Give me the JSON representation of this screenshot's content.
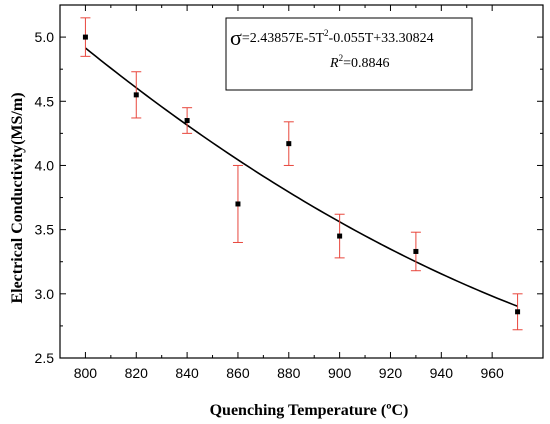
{
  "chart_data": {
    "type": "scatter",
    "xlabel": "Quenching Temperature (ºC)",
    "ylabel": "Electrical Conductivity(MS/m)",
    "xlim": [
      790,
      980
    ],
    "ylim": [
      2.5,
      5.25
    ],
    "xticks": [
      800,
      820,
      840,
      860,
      880,
      900,
      920,
      940,
      960
    ],
    "yticks": [
      2.5,
      3.0,
      3.5,
      4.0,
      4.5,
      5.0
    ],
    "xtick_labels": [
      "800",
      "820",
      "840",
      "860",
      "880",
      "900",
      "920",
      "940",
      "960"
    ],
    "ytick_labels": [
      "2.5",
      "3.0",
      "3.5",
      "4.0",
      "4.5",
      "5.0"
    ],
    "grid": false,
    "colors": {
      "points": "#000000",
      "error_bars": "#e8463c",
      "fit_line": "#000000"
    },
    "series": [
      {
        "kind": "points_with_error",
        "x": [
          800,
          820,
          840,
          860,
          880,
          900,
          930,
          970
        ],
        "y": [
          5.0,
          4.55,
          4.35,
          3.7,
          4.17,
          3.45,
          3.33,
          2.86
        ],
        "err": [
          0.15,
          0.18,
          0.1,
          0.3,
          0.17,
          0.17,
          0.15,
          0.14
        ]
      }
    ],
    "fit": {
      "a": 2.43857e-05,
      "b": -0.055,
      "c": 33.30824,
      "x_range": [
        800,
        970
      ]
    },
    "annotation": {
      "sigma": "σ",
      "equation_part1": "=2.43857E-5T",
      "sup1": "2",
      "equation_part2": "-0.055T+33.30824",
      "r_label": "R",
      "r_sup": "2",
      "r_value": "=0.8846"
    }
  }
}
